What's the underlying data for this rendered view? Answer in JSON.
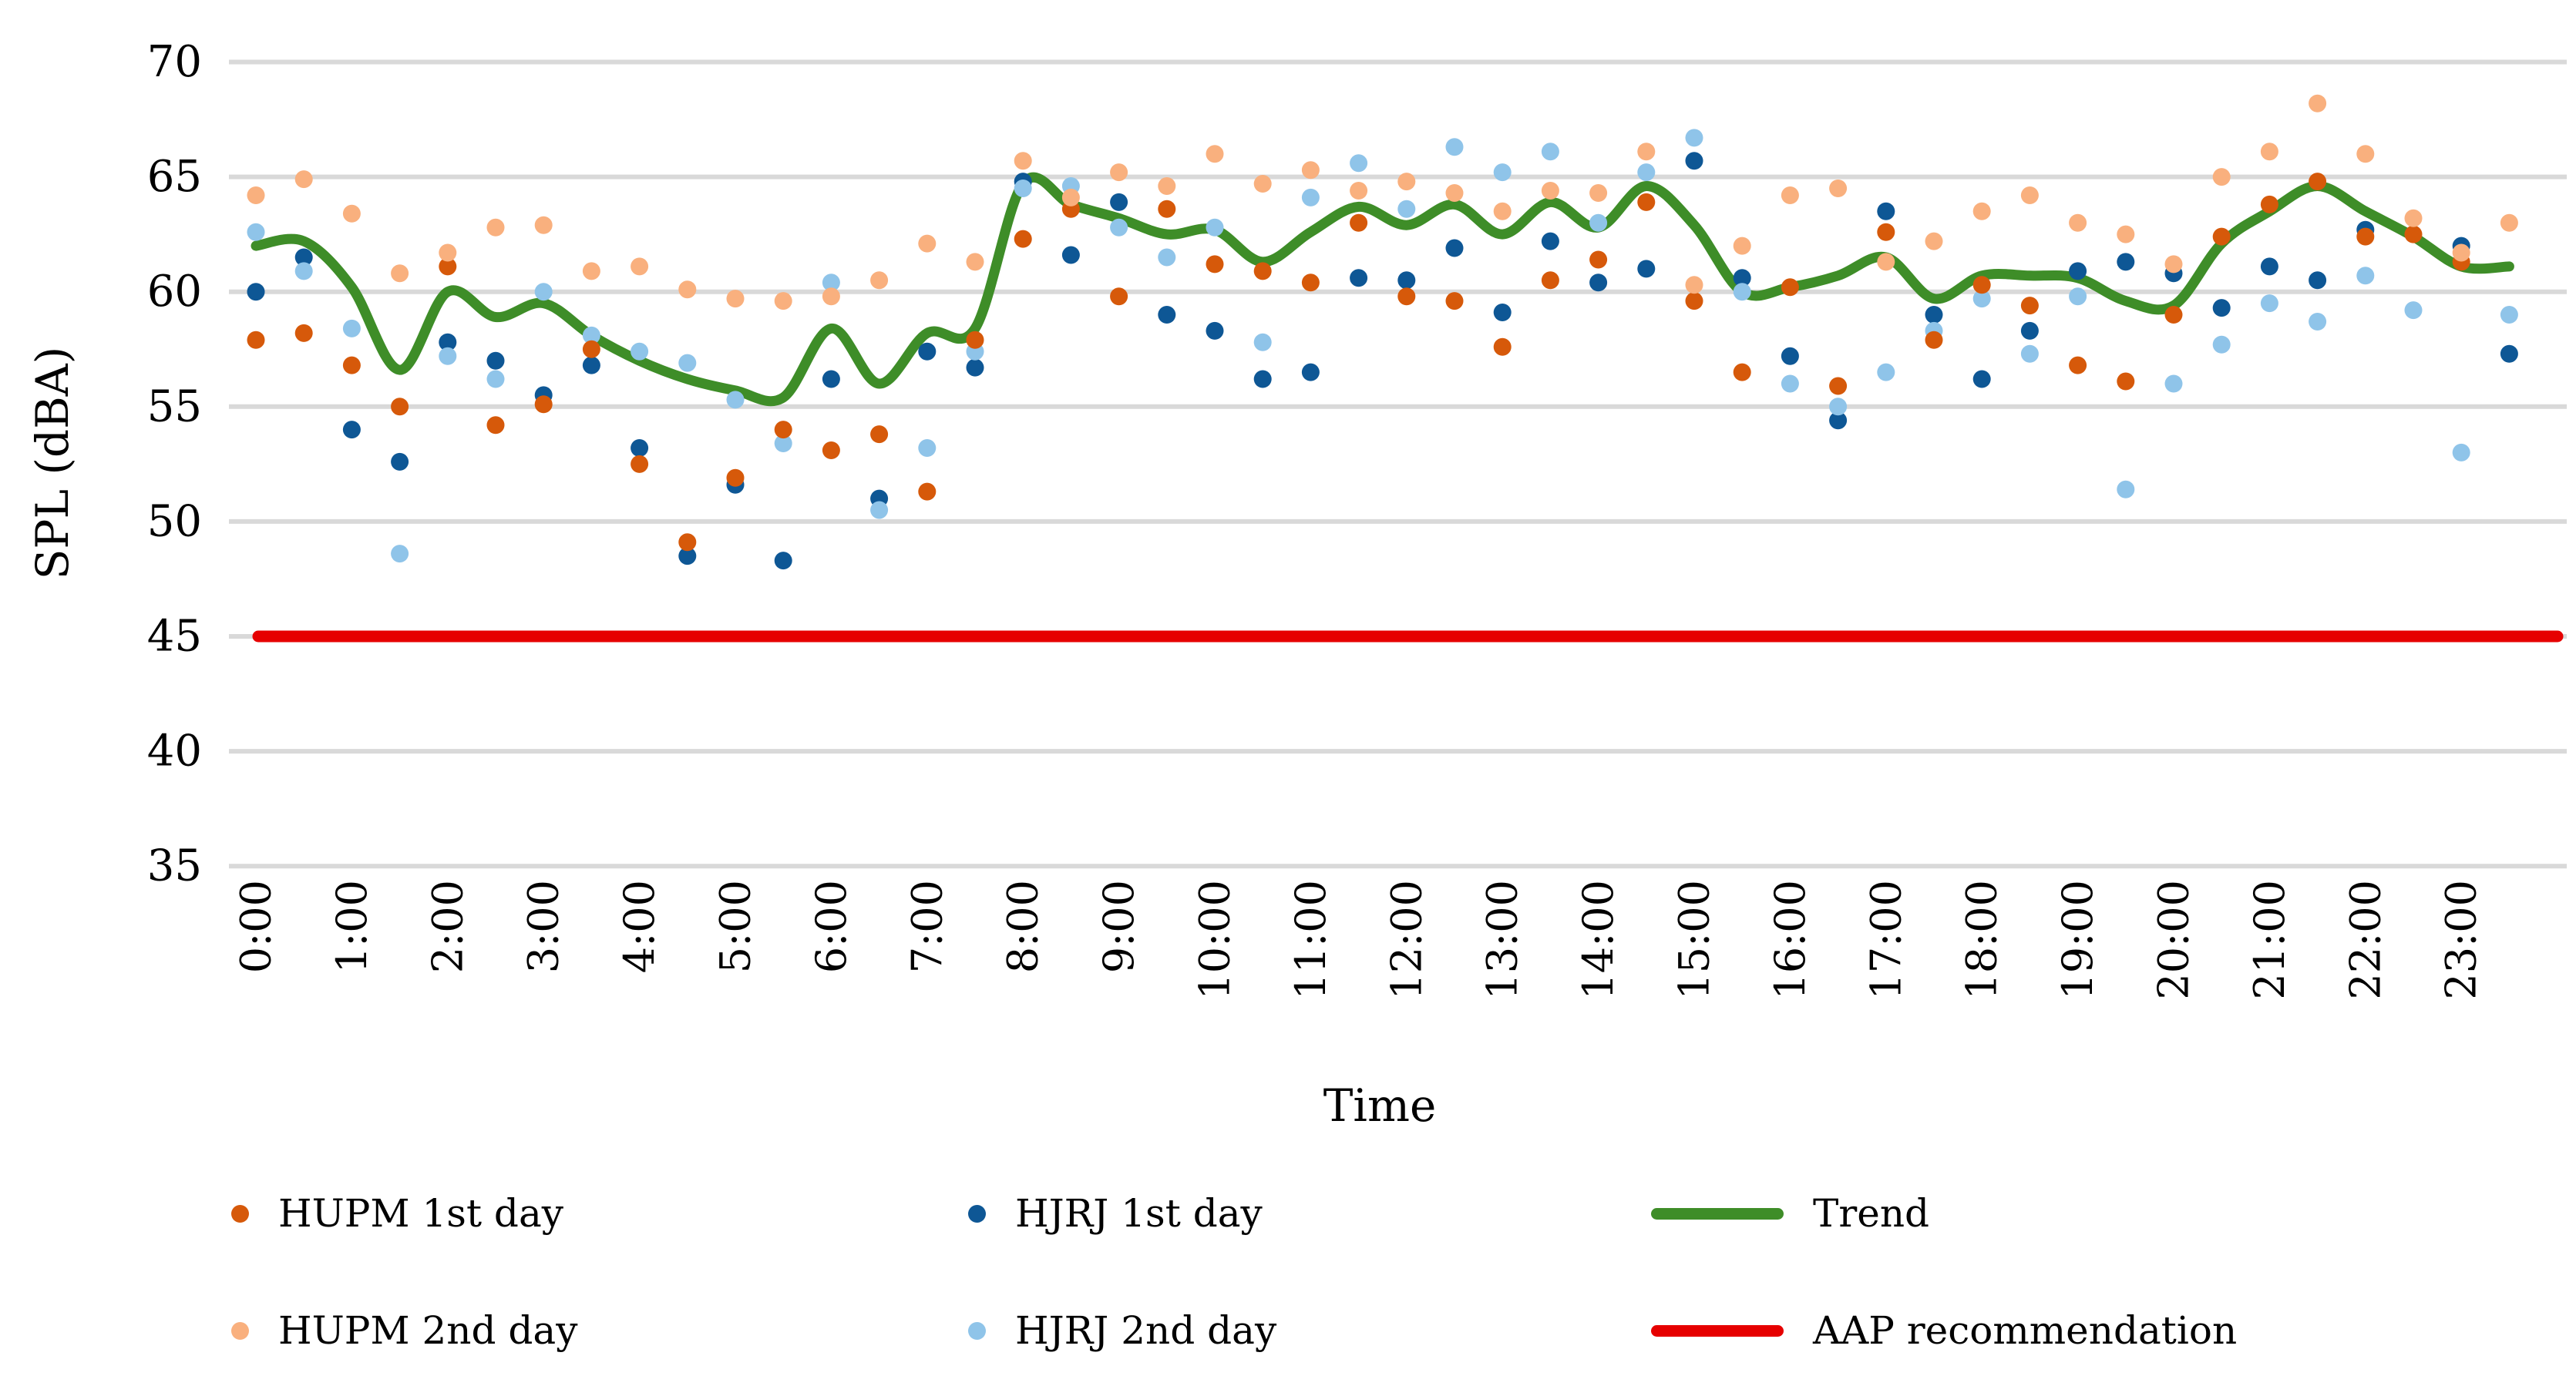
{
  "chart_data": {
    "type": "scatter",
    "title": "",
    "xlabel": "Time",
    "ylabel": "SPL (dBA)",
    "ylim": [
      35,
      70
    ],
    "yticks": [
      70,
      65,
      60,
      55,
      50,
      45,
      40,
      35
    ],
    "grid": true,
    "legend_position": "bottom",
    "x_tick_labels": [
      "0:00",
      "1:00",
      "2:00",
      "3:00",
      "4:00",
      "5:00",
      "6:00",
      "7:00",
      "8:00",
      "9:00",
      "10:00",
      "11:00",
      "12:00",
      "13:00",
      "14:00",
      "15:00",
      "16:00",
      "17:00",
      "18:00",
      "19:00",
      "20:00",
      "21:00",
      "22:00",
      "23:00"
    ],
    "x_times": [
      "0:00",
      "0:30",
      "1:00",
      "1:30",
      "2:00",
      "2:30",
      "3:00",
      "3:30",
      "4:00",
      "4:30",
      "5:00",
      "5:30",
      "6:00",
      "6:30",
      "7:00",
      "7:30",
      "8:00",
      "8:30",
      "9:00",
      "9:30",
      "10:00",
      "10:30",
      "11:00",
      "11:30",
      "12:00",
      "12:30",
      "13:00",
      "13:30",
      "14:00",
      "14:30",
      "15:00",
      "15:30",
      "16:00",
      "16:30",
      "17:00",
      "17:30",
      "18:00",
      "18:30",
      "19:00",
      "19:30",
      "20:00",
      "20:30",
      "21:00",
      "21:30",
      "22:00",
      "22:30",
      "23:00",
      "23:30"
    ],
    "series": [
      {
        "name": "HUPM 1st day",
        "kind": "scatter",
        "color": "#D6590A",
        "values": [
          57.9,
          58.2,
          56.8,
          55.0,
          61.1,
          54.2,
          55.1,
          57.5,
          52.5,
          49.1,
          51.9,
          54.0,
          53.1,
          53.8,
          51.3,
          57.9,
          62.3,
          63.6,
          59.8,
          63.6,
          61.2,
          60.9,
          60.4,
          63.0,
          59.8,
          59.6,
          57.6,
          60.5,
          61.4,
          63.9,
          59.6,
          56.5,
          60.2,
          55.9,
          62.6,
          57.9,
          60.3,
          59.4,
          56.8,
          56.1,
          59.0,
          62.4,
          63.8,
          64.8,
          62.4,
          62.5,
          61.3,
          null
        ]
      },
      {
        "name": "HUPM 2nd day",
        "kind": "scatter",
        "color": "#F9B07E",
        "values": [
          64.2,
          64.9,
          63.4,
          60.8,
          61.7,
          62.8,
          62.9,
          60.9,
          61.1,
          60.1,
          59.7,
          59.6,
          59.8,
          60.5,
          62.1,
          61.3,
          65.7,
          64.1,
          65.2,
          64.6,
          66.0,
          64.7,
          65.3,
          64.4,
          64.8,
          64.3,
          63.5,
          64.4,
          64.3,
          66.1,
          60.3,
          62.0,
          64.2,
          64.5,
          61.3,
          62.2,
          63.5,
          64.2,
          63.0,
          62.5,
          61.2,
          65.0,
          66.1,
          68.2,
          66.0,
          63.2,
          61.7,
          63.0
        ]
      },
      {
        "name": "HJRJ 1st day",
        "kind": "scatter",
        "color": "#0E5795",
        "values": [
          60.0,
          61.5,
          54.0,
          52.6,
          57.8,
          57.0,
          55.5,
          56.8,
          53.2,
          48.5,
          51.6,
          48.3,
          56.2,
          51.0,
          57.4,
          56.7,
          64.8,
          61.6,
          63.9,
          59.0,
          58.3,
          56.2,
          56.5,
          60.6,
          60.5,
          61.9,
          59.1,
          62.2,
          60.4,
          61.0,
          65.7,
          60.6,
          57.2,
          54.4,
          63.5,
          59.0,
          56.2,
          58.3,
          60.9,
          61.3,
          60.8,
          59.3,
          61.1,
          60.5,
          62.7,
          null,
          62.0,
          57.3
        ]
      },
      {
        "name": "HJRJ 2nd day",
        "kind": "scatter",
        "color": "#8FC4E9",
        "values": [
          62.6,
          60.9,
          58.4,
          48.6,
          57.2,
          56.2,
          60.0,
          58.1,
          57.4,
          56.9,
          55.3,
          53.4,
          60.4,
          50.5,
          53.2,
          57.4,
          64.5,
          64.6,
          62.8,
          61.5,
          62.8,
          57.8,
          64.1,
          65.6,
          63.6,
          66.3,
          65.2,
          66.1,
          63.0,
          65.2,
          66.7,
          60.0,
          56.0,
          55.0,
          56.5,
          58.3,
          59.7,
          57.3,
          59.8,
          51.4,
          56.0,
          57.7,
          59.5,
          58.7,
          60.7,
          59.2,
          53.0,
          59.0
        ]
      },
      {
        "name": "Trend",
        "kind": "line",
        "color": "#3E8D28",
        "values": [
          62.0,
          62.2,
          60.2,
          56.6,
          60.0,
          58.9,
          59.5,
          58.1,
          57.0,
          56.2,
          55.7,
          55.4,
          58.4,
          56.0,
          58.2,
          58.4,
          64.7,
          63.8,
          63.2,
          62.5,
          62.7,
          61.3,
          62.6,
          63.7,
          62.9,
          63.8,
          62.5,
          63.9,
          62.8,
          64.6,
          62.9,
          60.0,
          60.2,
          60.7,
          61.5,
          59.7,
          60.7,
          60.7,
          60.6,
          59.6,
          59.4,
          62.1,
          63.5,
          64.6,
          63.5,
          62.4,
          61.1,
          61.1
        ]
      },
      {
        "name": "AAP recommendation",
        "kind": "hline",
        "color": "#E60000",
        "value": 45
      }
    ]
  },
  "axis": {
    "y_title": "SPL (dBA)",
    "x_title": "Time"
  },
  "colors": {
    "gridline": "#D9D9D9",
    "text": "#000000",
    "background": "#FFFFFF"
  },
  "legend": {
    "items": [
      {
        "label": "HUPM 1st day",
        "marker": "dot",
        "color": "#D6590A"
      },
      {
        "label": "HJRJ 1st day",
        "marker": "dot",
        "color": "#0E5795"
      },
      {
        "label": "Trend",
        "marker": "line",
        "color": "#3E8D28"
      },
      {
        "label": "HUPM 2nd day",
        "marker": "dot",
        "color": "#F9B07E"
      },
      {
        "label": "HJRJ 2nd day",
        "marker": "dot",
        "color": "#8FC4E9"
      },
      {
        "label": "AAP recommendation",
        "marker": "line",
        "color": "#E60000"
      }
    ]
  }
}
